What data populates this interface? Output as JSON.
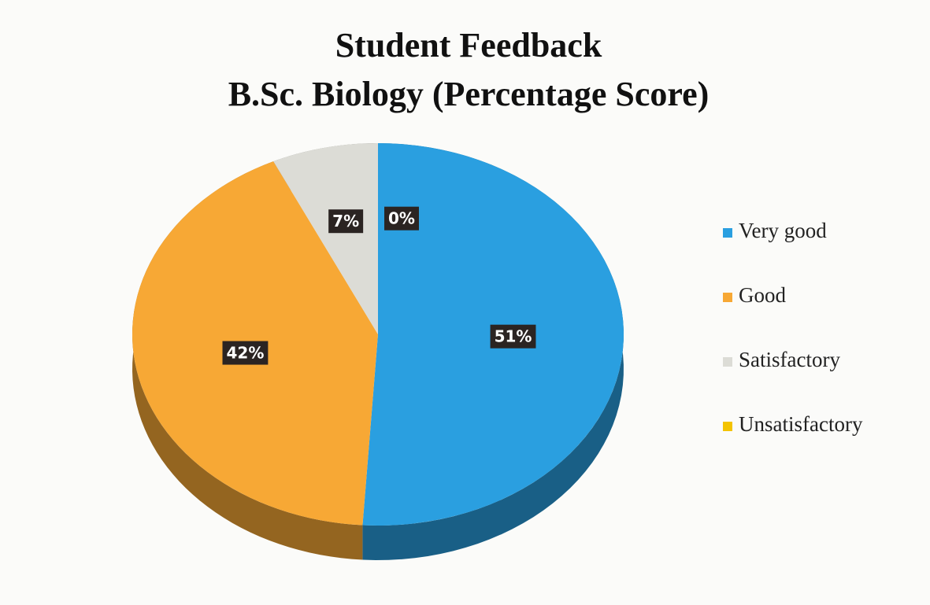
{
  "chart_data": {
    "type": "pie",
    "title": "Student Feedback",
    "subtitle": "B.Sc. Biology (Percentage Score)",
    "categories": [
      "Very good",
      "Good",
      "Satisfactory",
      "Unsatisfactory"
    ],
    "values": [
      51,
      42,
      7,
      0
    ],
    "value_labels": [
      "51%",
      "42%",
      "7%",
      "0%"
    ],
    "colors": [
      "#2a9fe0",
      "#f7a835",
      "#dcdcd6",
      "#f3c300"
    ],
    "legend": "right"
  }
}
